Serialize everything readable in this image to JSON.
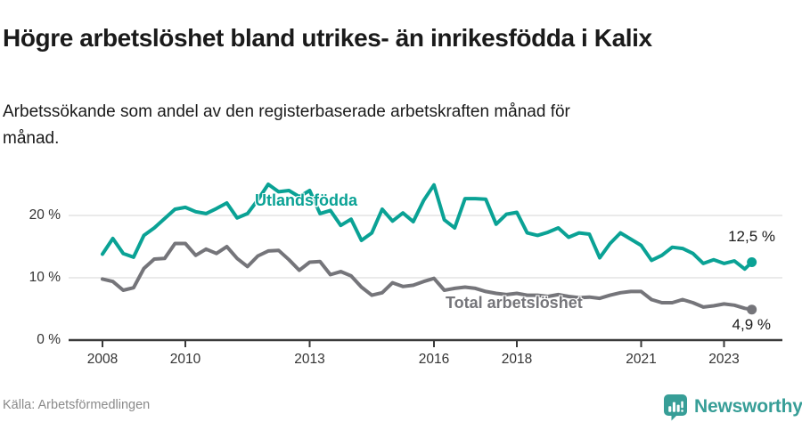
{
  "header": {
    "title": "Högre arbetslöshet bland utrikes- än inrikesfödda i Kalix",
    "subtitle": "Arbetssökande som andel av den registerbaserade arbetskraften månad för månad."
  },
  "footer": {
    "source": "Källa: Arbetsförmedlingen",
    "brand": "Newsworthy"
  },
  "colors": {
    "accent_teal": "#0aa295",
    "line_gray": "#75757a",
    "axis": "#3a3a3a",
    "grid": "#e3e3e3",
    "text_dark": "#1a1a1a",
    "brand_teal": "#379e97"
  },
  "chart_data": {
    "type": "line",
    "title": "Högre arbetslöshet bland utrikes- än inrikesfödda i Kalix",
    "subtitle": "Arbetssökande som andel av den registerbaserade arbetskraften månad för månad.",
    "unit": "%",
    "grid": "horizontal-only",
    "xlim": [
      2008,
      2023.9
    ],
    "ylim": [
      0,
      27
    ],
    "x_ticks": [
      2008,
      2010,
      2013,
      2016,
      2018,
      2021,
      2023
    ],
    "x_tick_labels": [
      "2008",
      "2010",
      "2013",
      "2016",
      "2018",
      "2021",
      "2023"
    ],
    "y_ticks": [
      0,
      10,
      20
    ],
    "y_tick_labels": [
      "0 %",
      "10 %",
      "20 %"
    ],
    "x": [
      2008,
      2008.25,
      2008.5,
      2008.75,
      2009,
      2009.25,
      2009.5,
      2009.75,
      2010,
      2010.25,
      2010.5,
      2010.75,
      2011,
      2011.25,
      2011.5,
      2011.75,
      2012,
      2012.25,
      2012.5,
      2012.75,
      2013,
      2013.25,
      2013.5,
      2013.75,
      2014,
      2014.25,
      2014.5,
      2014.75,
      2015,
      2015.25,
      2015.5,
      2015.75,
      2016,
      2016.25,
      2016.5,
      2016.75,
      2017,
      2017.25,
      2017.5,
      2017.75,
      2018,
      2018.25,
      2018.5,
      2018.75,
      2019,
      2019.25,
      2019.5,
      2019.75,
      2020,
      2020.25,
      2020.5,
      2020.75,
      2021,
      2021.25,
      2021.5,
      2021.75,
      2022,
      2022.25,
      2022.5,
      2022.75,
      2023,
      2023.25,
      2023.5,
      2023.67
    ],
    "series": [
      {
        "name": "Utlandsfödda",
        "color": "#0aa295",
        "end_label": "12,5 %",
        "end_value": 12.5,
        "values": [
          13.8,
          16.3,
          13.9,
          13.3,
          16.8,
          18.0,
          19.5,
          21.0,
          21.3,
          20.6,
          20.3,
          21.1,
          22.0,
          19.6,
          20.3,
          22.5,
          25.0,
          23.8,
          24.0,
          23.0,
          24.0,
          20.3,
          20.8,
          18.4,
          19.4,
          16.0,
          17.2,
          21.0,
          19.1,
          20.4,
          19.0,
          22.4,
          24.9,
          19.3,
          18.0,
          22.7,
          22.7,
          22.6,
          18.6,
          20.2,
          20.5,
          17.2,
          16.8,
          17.3,
          18.0,
          16.5,
          17.2,
          17.0,
          13.2,
          15.5,
          17.2,
          16.2,
          15.2,
          12.8,
          13.6,
          14.9,
          14.7,
          13.9,
          12.3,
          12.9,
          12.3,
          12.7,
          11.4,
          12.5
        ]
      },
      {
        "name": "Total arbetslöshet",
        "color": "#75757a",
        "end_label": "4,9 %",
        "end_value": 4.9,
        "values": [
          9.8,
          9.4,
          8.0,
          8.4,
          11.5,
          13.0,
          13.1,
          15.5,
          15.5,
          13.6,
          14.6,
          13.9,
          15.0,
          13.1,
          11.8,
          13.5,
          14.3,
          14.4,
          12.9,
          11.2,
          12.5,
          12.6,
          10.5,
          11.0,
          10.3,
          8.5,
          7.2,
          7.6,
          9.2,
          8.6,
          8.8,
          9.4,
          9.9,
          8.0,
          8.3,
          8.5,
          8.3,
          7.8,
          7.5,
          7.3,
          7.5,
          7.2,
          7.2,
          7.0,
          7.3,
          7.0,
          6.8,
          6.9,
          6.7,
          7.2,
          7.6,
          7.8,
          7.8,
          6.5,
          6.0,
          6.0,
          6.5,
          6.0,
          5.3,
          5.5,
          5.8,
          5.6,
          5.1,
          4.9
        ]
      }
    ]
  }
}
